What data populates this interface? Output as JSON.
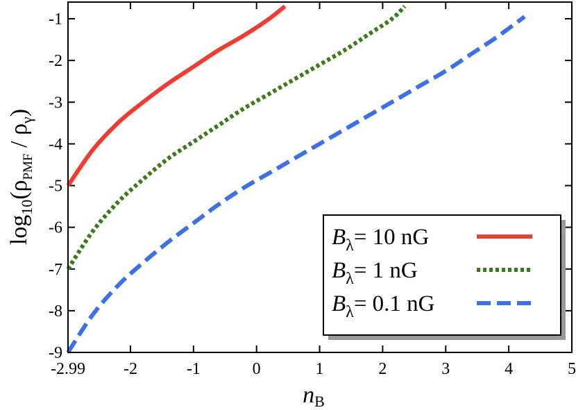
{
  "chart_data": {
    "type": "line",
    "xlabel": {
      "main": "n",
      "sub": "B"
    },
    "ylabel": {
      "pre": "log",
      "sub1": "10",
      "open": "(ρ",
      "sub2": "PMF",
      "slash": " / ρ",
      "sub3": "γ",
      "close": ")"
    },
    "xlim": [
      -2.99,
      5
    ],
    "ylim": [
      -9,
      -0.6
    ],
    "xticks": [
      -2.99,
      -2,
      -1,
      0,
      1,
      2,
      3,
      4,
      5
    ],
    "xtick_labels": [
      "-2.99",
      "-2",
      "-1",
      "0",
      "1",
      "2",
      "3",
      "4",
      "5"
    ],
    "yticks": [
      -9,
      -8,
      -7,
      -6,
      -5,
      -4,
      -3,
      -2,
      -1
    ],
    "ytick_labels": [
      "-9",
      "-8",
      "-7",
      "-6",
      "-5",
      "-4",
      "-3",
      "-2",
      "-1"
    ],
    "legend_position": "lower-right",
    "series": [
      {
        "name": "10 nG",
        "legend": {
          "B": "B",
          "sub": "λ",
          "text": "= 10 nG"
        },
        "color": "#f03c32",
        "style": "solid",
        "x": [
          -2.99,
          -2.6,
          -2.2,
          -1.8,
          -1.4,
          -1.0,
          -0.6,
          -0.2,
          0.2,
          0.45
        ],
        "y": [
          -5.0,
          -4.15,
          -3.5,
          -3.0,
          -2.55,
          -2.15,
          -1.75,
          -1.4,
          -1.0,
          -0.7
        ]
      },
      {
        "name": "1 nG",
        "legend": {
          "B": "B",
          "sub": "λ",
          "text": "= 1 nG"
        },
        "color": "#3d7a1a",
        "style": "dotted",
        "x": [
          -2.99,
          -2.6,
          -2.2,
          -1.8,
          -1.4,
          -1.0,
          -0.6,
          -0.2,
          0.2,
          0.6,
          1.0,
          1.4,
          1.8,
          2.15,
          2.35
        ],
        "y": [
          -7.0,
          -6.1,
          -5.4,
          -4.85,
          -4.35,
          -3.95,
          -3.55,
          -3.15,
          -2.8,
          -2.45,
          -2.1,
          -1.75,
          -1.35,
          -1.0,
          -0.7
        ]
      },
      {
        "name": "0.1 nG",
        "legend": {
          "B": "B",
          "sub": "λ",
          "text": "= 0.1 nG"
        },
        "color": "#3d6fe8",
        "style": "dashed",
        "x": [
          -2.99,
          -2.6,
          -2.2,
          -1.8,
          -1.4,
          -1.0,
          -0.6,
          -0.2,
          0.2,
          0.6,
          1.0,
          1.4,
          1.8,
          2.2,
          2.6,
          3.0,
          3.4,
          3.8,
          4.25
        ],
        "y": [
          -9.0,
          -8.1,
          -7.4,
          -6.85,
          -6.35,
          -5.9,
          -5.45,
          -5.05,
          -4.7,
          -4.35,
          -4.0,
          -3.65,
          -3.3,
          -2.95,
          -2.6,
          -2.25,
          -1.85,
          -1.45,
          -0.95
        ]
      }
    ]
  }
}
